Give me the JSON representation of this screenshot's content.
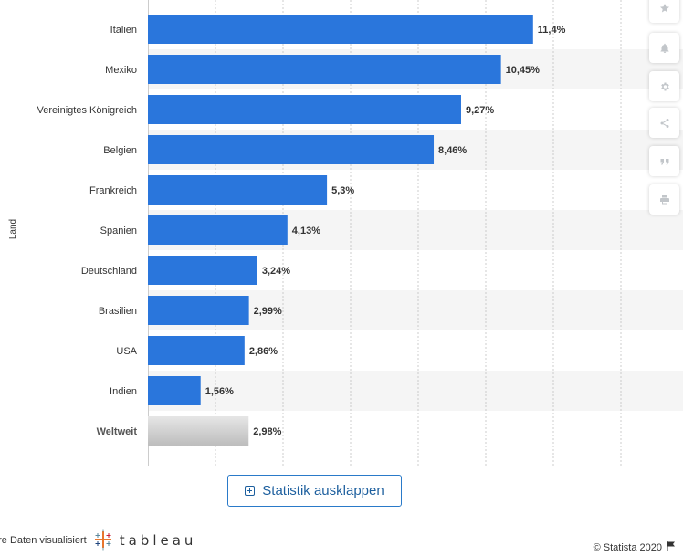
{
  "chart_data": {
    "type": "bar",
    "orientation": "horizontal",
    "ylabel": "Land",
    "categories": [
      "Italien",
      "Mexiko",
      "Vereinigtes Königreich",
      "Belgien",
      "Frankreich",
      "Spanien",
      "Deutschland",
      "Brasilien",
      "USA",
      "Indien",
      "Weltweit"
    ],
    "values": [
      11.4,
      10.45,
      9.27,
      8.46,
      5.3,
      4.13,
      3.24,
      2.99,
      2.86,
      1.56,
      2.98
    ],
    "value_labels": [
      "11,4%",
      "10,45%",
      "9,27%",
      "8,46%",
      "5,3%",
      "4,13%",
      "3,24%",
      "2,99%",
      "2,86%",
      "1,56%",
      "2,98%"
    ],
    "highlight_category": "Weltweit",
    "xlim": [
      0,
      14
    ],
    "grid": true,
    "colors": {
      "bar": "#2a76dc",
      "highlight_bar": "#bdbdbd",
      "row_band": "#f5f5f5",
      "grid": "#cccccc"
    }
  },
  "toolbar": {
    "icons": [
      "star-icon",
      "bell-icon",
      "gear-icon",
      "share-icon",
      "quote-icon",
      "print-icon"
    ]
  },
  "expand_button": {
    "label": "Statistik ausklappen"
  },
  "footer": {
    "tableau_text": "hre Daten visualisiert",
    "tableau_brand": "tableau",
    "copyright": "© Statista 2020"
  }
}
